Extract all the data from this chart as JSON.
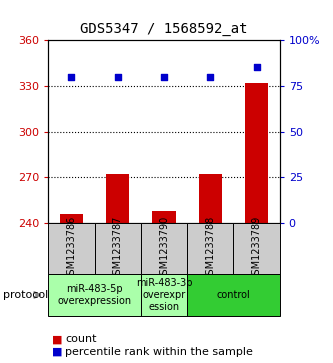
{
  "title": "GDS5347 / 1568592_at",
  "samples": [
    "GSM1233786",
    "GSM1233787",
    "GSM1233790",
    "GSM1233788",
    "GSM1233789"
  ],
  "count_values": [
    246,
    272,
    248,
    272,
    332
  ],
  "percentile_values": [
    80,
    80,
    80,
    80,
    85
  ],
  "ylim_left": [
    240,
    360
  ],
  "ylim_right": [
    0,
    100
  ],
  "yticks_left": [
    240,
    270,
    300,
    330,
    360
  ],
  "yticks_right": [
    0,
    25,
    50,
    75,
    100
  ],
  "bar_color": "#cc0000",
  "dot_color": "#0000cc",
  "bar_width": 0.5,
  "dotted_lines": [
    270,
    300,
    330
  ],
  "protocol_groups": [
    {
      "label": "miR-483-5p\noverexpression",
      "start": 0,
      "end": 1,
      "color": "#aaffaa"
    },
    {
      "label": "miR-483-3p\noverexpr\nession",
      "start": 2,
      "end": 2,
      "color": "#aaffaa"
    },
    {
      "label": "control",
      "start": 3,
      "end": 4,
      "color": "#33cc33"
    }
  ],
  "title_fontsize": 10,
  "tick_fontsize": 8,
  "sample_label_fontsize": 7,
  "legend_fontsize": 8,
  "protocol_fontsize": 7,
  "bg_color": "#ffffff",
  "gray_box_color": "#cccccc"
}
